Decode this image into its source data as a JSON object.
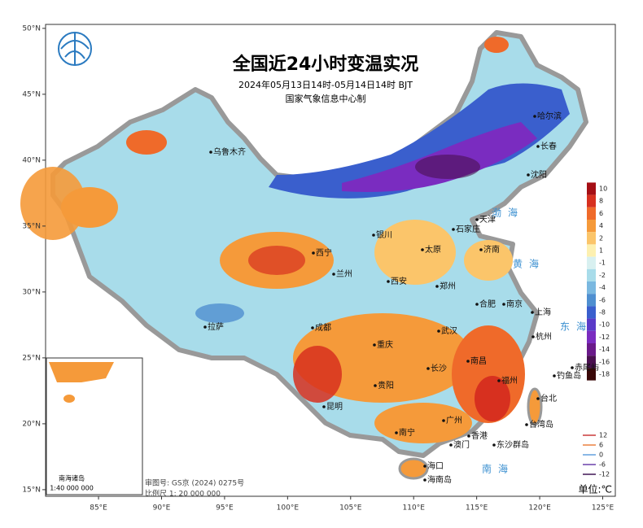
{
  "title": "全国近24小时变温实况",
  "subtitle": "2024年05月13日14时-05月14日14时 BJT",
  "producer": "国家气象信息中心制",
  "lon_range": [
    80.8,
    126
  ],
  "lat_range": [
    14.5,
    50.3
  ],
  "lon_ticks": [
    {
      "value": 85,
      "label": "85°E"
    },
    {
      "value": 90,
      "label": "90°E"
    },
    {
      "value": 95,
      "label": "95°E"
    },
    {
      "value": 100,
      "label": "100°E"
    },
    {
      "value": 105,
      "label": "105°E"
    },
    {
      "value": 110,
      "label": "110°E"
    },
    {
      "value": 115,
      "label": "115°E"
    },
    {
      "value": 120,
      "label": "120°E"
    },
    {
      "value": 125,
      "label": "125°E"
    }
  ],
  "lat_ticks": [
    {
      "value": 50,
      "label": "50°N"
    },
    {
      "value": 45,
      "label": "45°N"
    },
    {
      "value": 40,
      "label": "40°N"
    },
    {
      "value": 35,
      "label": "35°N"
    },
    {
      "value": 30,
      "label": "30°N"
    },
    {
      "value": 25,
      "label": "25°N"
    },
    {
      "value": 20,
      "label": "20°N"
    },
    {
      "value": 15,
      "label": "15°N"
    }
  ],
  "colorbar": [
    {
      "value": 10,
      "color": "#a50f15"
    },
    {
      "value": 8,
      "color": "#d7301f"
    },
    {
      "value": 6,
      "color": "#ef6a2a"
    },
    {
      "value": 4,
      "color": "#f59a3a"
    },
    {
      "value": 2,
      "color": "#fbc56a"
    },
    {
      "value": 1,
      "color": "#fdf0b0"
    },
    {
      "value": -1,
      "color": "#d8f0f0"
    },
    {
      "value": -2,
      "color": "#a8dcea"
    },
    {
      "value": -4,
      "color": "#7ab8e0"
    },
    {
      "value": -6,
      "color": "#4f8fd0"
    },
    {
      "value": -8,
      "color": "#3a5fcd"
    },
    {
      "value": -10,
      "color": "#5a3ac8"
    },
    {
      "value": -12,
      "color": "#7a2cc0"
    },
    {
      "value": -14,
      "color": "#6a1a8a"
    },
    {
      "value": -16,
      "color": "#4a1050"
    },
    {
      "value": -18,
      "color": "#3a0808"
    }
  ],
  "contour_legend": [
    {
      "value": 12,
      "color": "#d76b6b"
    },
    {
      "value": 6,
      "color": "#f0a070"
    },
    {
      "value": 0,
      "color": "#8ab8e6"
    },
    {
      "value": -6,
      "color": "#9070c0"
    },
    {
      "value": -12,
      "color": "#705080"
    }
  ],
  "unit": "单位:℃",
  "approval": "审图号: GS京 (2024) 0275号",
  "scale": "比例尺 1: 20 000 000",
  "inset": {
    "title": "南海诸岛",
    "scale": "1:40 000 000"
  },
  "cities": [
    "哈尔滨",
    "长春",
    "沈阳",
    "乌鲁木齐",
    "天津",
    "石家庄",
    "银川",
    "太原",
    "济南",
    "西宁",
    "兰州",
    "西安",
    "郑州",
    "合肥",
    "南京",
    "上海",
    "成都",
    "拉萨",
    "武汉",
    "杭州",
    "重庆",
    "长沙",
    "南昌",
    "贵阳",
    "福州",
    "昆明",
    "台北",
    "南宁",
    "广州",
    "香港",
    "澳门",
    "海口",
    "海南岛",
    "台湾岛",
    "钓鱼岛",
    "赤尾屿",
    "东沙群岛"
  ],
  "seas": [
    "渤海",
    "黄海",
    "东海",
    "南海"
  ]
}
